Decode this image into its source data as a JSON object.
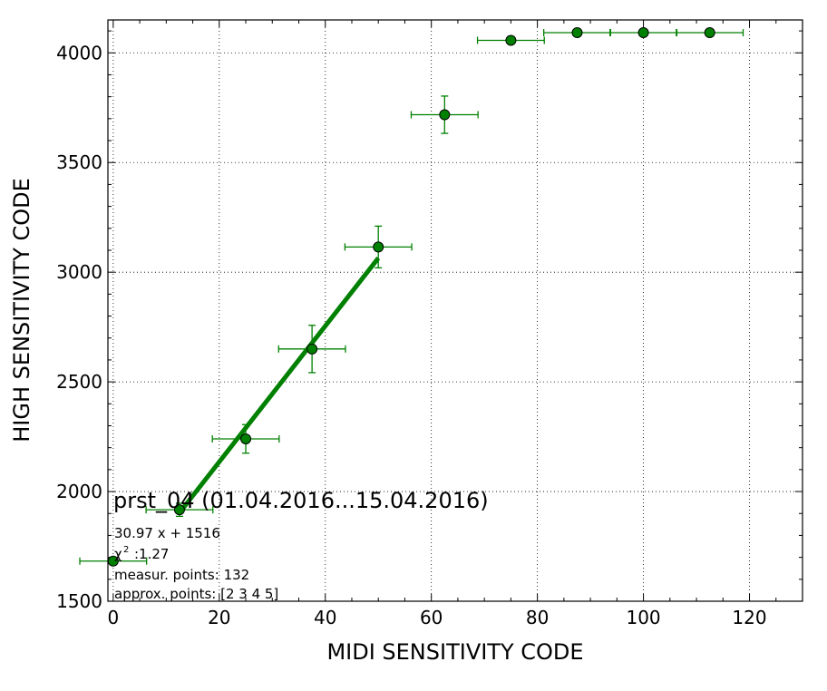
{
  "chart_data": {
    "type": "scatter",
    "xlabel": "MIDI SENSITIVITY CODE",
    "ylabel": "HIGH SENSITIVITY CODE",
    "xlim": [
      -1,
      130
    ],
    "ylim": [
      1500,
      4150
    ],
    "x_ticks": [
      0,
      20,
      40,
      60,
      80,
      100,
      120
    ],
    "y_ticks": [
      1500,
      2000,
      2500,
      3000,
      3500,
      4000
    ],
    "grid": true,
    "color": "#008000",
    "series": [
      {
        "points": [
          {
            "x": 0,
            "y": 1683,
            "xerr": 6.3,
            "yerr": 0
          },
          {
            "x": 12.5,
            "y": 1917,
            "xerr": 6.3,
            "yerr": 30
          },
          {
            "x": 25,
            "y": 2240,
            "xerr": 6.3,
            "yerr": 65
          },
          {
            "x": 37.5,
            "y": 2650,
            "xerr": 6.3,
            "yerr": 108
          },
          {
            "x": 50,
            "y": 3115,
            "xerr": 6.3,
            "yerr": 95
          },
          {
            "x": 62.5,
            "y": 3718,
            "xerr": 6.3,
            "yerr": 85
          },
          {
            "x": 75,
            "y": 4057,
            "xerr": 6.3,
            "yerr": 0
          },
          {
            "x": 87.5,
            "y": 4092,
            "xerr": 6.3,
            "yerr": 0
          },
          {
            "x": 100,
            "y": 4092,
            "xerr": 6.3,
            "yerr": 0
          },
          {
            "x": 112.5,
            "y": 4092,
            "xerr": 6.3,
            "yerr": 0
          }
        ]
      }
    ],
    "fit_line": {
      "x_start": 12.5,
      "x_end": 50,
      "slope": 30.97,
      "intercept": 1516
    },
    "annotations": {
      "title": "prst_04 (01.04.2016...15.04.2016)",
      "equation": "30.97 x + 1516",
      "chi2_symbol": "χ",
      "chi2_sup": "2",
      "chi2_value": ":1.27",
      "measur_points": "measur. points: 132",
      "approx_points": "approx. points: [2 3 4 5]"
    }
  }
}
